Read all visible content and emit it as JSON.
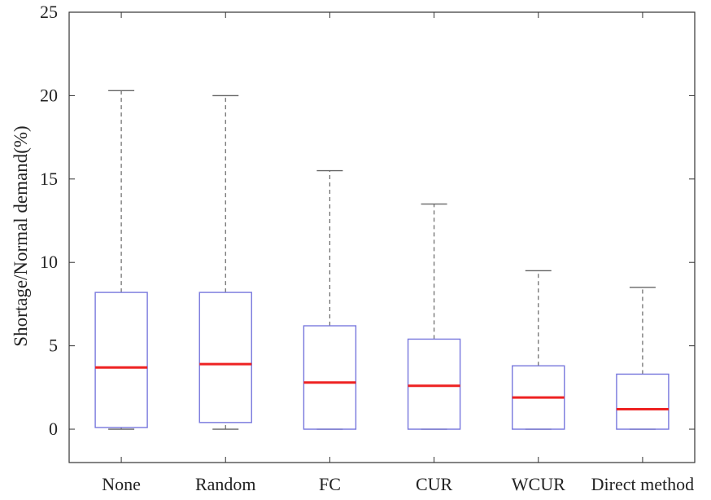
{
  "chart_data": {
    "type": "box",
    "title": "",
    "xlabel": "",
    "ylabel": "Shortage/Normal demand(%)",
    "ylim": [
      -2,
      25
    ],
    "yticks": [
      0,
      5,
      10,
      15,
      20,
      25
    ],
    "grid": false,
    "categories": [
      "None",
      "Random",
      "FC",
      "CUR",
      "WCUR",
      "Direct method"
    ],
    "boxes": [
      {
        "category": "None",
        "whisker_low": 0.0,
        "q1": 0.1,
        "median": 3.7,
        "q3": 8.2,
        "whisker_high": 20.3
      },
      {
        "category": "Random",
        "whisker_low": 0.0,
        "q1": 0.4,
        "median": 3.9,
        "q3": 8.2,
        "whisker_high": 20.0
      },
      {
        "category": "FC",
        "whisker_low": 0.0,
        "q1": 0.0,
        "median": 2.8,
        "q3": 6.2,
        "whisker_high": 15.5
      },
      {
        "category": "CUR",
        "whisker_low": 0.0,
        "q1": 0.0,
        "median": 2.6,
        "q3": 5.4,
        "whisker_high": 13.5
      },
      {
        "category": "WCUR",
        "whisker_low": 0.0,
        "q1": 0.0,
        "median": 1.9,
        "q3": 3.8,
        "whisker_high": 9.5
      },
      {
        "category": "Direct method",
        "whisker_low": 0.0,
        "q1": 0.0,
        "median": 1.2,
        "q3": 3.3,
        "whisker_high": 8.5
      }
    ],
    "colors": {
      "box": "#7777dd",
      "median": "#ee2222",
      "whisker": "#666666",
      "axis": "#333333"
    }
  }
}
